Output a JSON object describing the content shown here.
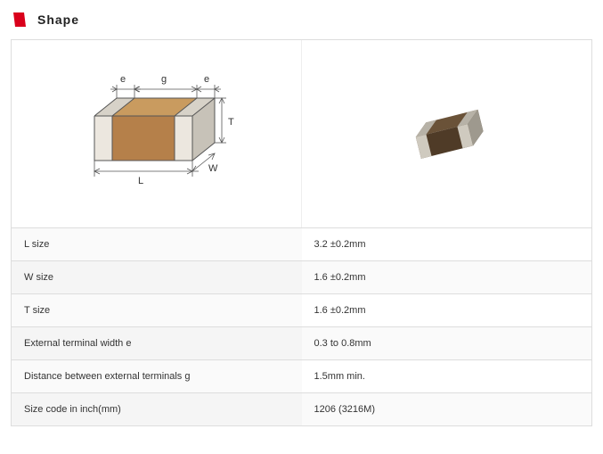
{
  "header": {
    "title": "Shape",
    "icon_color": "#d9001b"
  },
  "diagram": {
    "body_top": "#c99b5f",
    "body_front": "#b5804a",
    "body_side": "#a06f3e",
    "terminal_light": "#ece7df",
    "terminal_mid": "#d7d2c8",
    "terminal_dark": "#c7c2b8",
    "line": "#555555",
    "label_color": "#333333",
    "labels": {
      "L": "L",
      "W": "W",
      "T": "T",
      "e": "e",
      "g": "g"
    },
    "photo": {
      "top": "#6a5238",
      "front": "#4f3b27",
      "side": "#3d2d1d",
      "term_light": "#cfcabf",
      "term_mid": "#b7b2a7",
      "term_dark": "#9e998e"
    }
  },
  "spec_rows": [
    {
      "label": "L size",
      "value": "3.2 ±0.2mm"
    },
    {
      "label": "W size",
      "value": "1.6 ±0.2mm"
    },
    {
      "label": "T size",
      "value": "1.6 ±0.2mm"
    },
    {
      "label": "External terminal width e",
      "value": "0.3 to 0.8mm"
    },
    {
      "label": "Distance between external terminals g",
      "value": "1.5mm min."
    },
    {
      "label": "Size code in inch(mm)",
      "value": "1206 (3216M)"
    }
  ]
}
